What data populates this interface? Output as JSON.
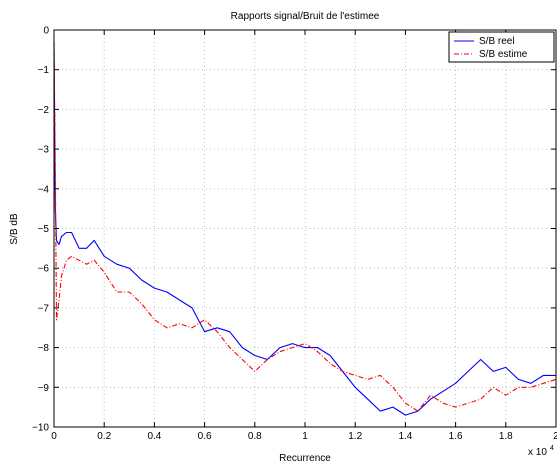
{
  "chart_data": {
    "type": "line",
    "title": "Rapports signal/Bruit de l'estimee",
    "xlabel": "Recurrence",
    "ylabel": "S/B dB",
    "x_multiplier_label": "x 10",
    "x_multiplier_exponent": "4",
    "xlim": [
      0,
      2
    ],
    "ylim": [
      -10,
      0
    ],
    "xticks": [
      "0",
      "0.2",
      "0.4",
      "0.6",
      "0.8",
      "1",
      "1.2",
      "1.4",
      "1.6",
      "1.8",
      "2"
    ],
    "yticks": [
      "0",
      "−1",
      "−2",
      "−3",
      "−4",
      "−5",
      "−6",
      "−7",
      "−8",
      "−9",
      "−10"
    ],
    "grid": true,
    "legend_position": "top-right",
    "series": [
      {
        "name": "S/B reel",
        "color": "#0000ff",
        "style": "solid",
        "x": [
          0.0,
          0.005,
          0.01,
          0.02,
          0.03,
          0.05,
          0.07,
          0.1,
          0.13,
          0.16,
          0.2,
          0.25,
          0.3,
          0.35,
          0.4,
          0.45,
          0.5,
          0.55,
          0.6,
          0.65,
          0.7,
          0.75,
          0.8,
          0.85,
          0.9,
          0.95,
          1.0,
          1.05,
          1.1,
          1.15,
          1.2,
          1.25,
          1.3,
          1.35,
          1.4,
          1.45,
          1.5,
          1.55,
          1.6,
          1.65,
          1.7,
          1.75,
          1.8,
          1.85,
          1.9,
          1.95,
          2.0
        ],
        "y": [
          -0.3,
          -4.5,
          -5.3,
          -5.4,
          -5.2,
          -5.1,
          -5.1,
          -5.5,
          -5.5,
          -5.3,
          -5.7,
          -5.9,
          -6.0,
          -6.3,
          -6.5,
          -6.6,
          -6.8,
          -7.0,
          -7.6,
          -7.5,
          -7.6,
          -8.0,
          -8.2,
          -8.3,
          -8.0,
          -7.9,
          -8.0,
          -8.0,
          -8.2,
          -8.6,
          -9.0,
          -9.3,
          -9.6,
          -9.5,
          -9.7,
          -9.6,
          -9.3,
          -9.1,
          -8.9,
          -8.6,
          -8.3,
          -8.6,
          -8.5,
          -8.8,
          -8.9,
          -8.7,
          -8.7
        ]
      },
      {
        "name": "S/B estime",
        "color": "#ff0000",
        "style": "dash-dot",
        "x": [
          0.0,
          0.005,
          0.01,
          0.02,
          0.03,
          0.05,
          0.07,
          0.1,
          0.13,
          0.16,
          0.2,
          0.25,
          0.3,
          0.35,
          0.4,
          0.45,
          0.5,
          0.55,
          0.6,
          0.65,
          0.7,
          0.75,
          0.8,
          0.85,
          0.9,
          0.95,
          1.0,
          1.05,
          1.1,
          1.15,
          1.2,
          1.25,
          1.3,
          1.35,
          1.4,
          1.45,
          1.5,
          1.55,
          1.6,
          1.65,
          1.7,
          1.75,
          1.8,
          1.85,
          1.9,
          1.95,
          2.0
        ],
        "y": [
          -0.3,
          -3.5,
          -7.3,
          -6.8,
          -6.2,
          -5.8,
          -5.7,
          -5.8,
          -5.9,
          -5.8,
          -6.1,
          -6.6,
          -6.6,
          -6.9,
          -7.3,
          -7.5,
          -7.4,
          -7.5,
          -7.3,
          -7.6,
          -8.0,
          -8.3,
          -8.6,
          -8.3,
          -8.1,
          -8.0,
          -7.9,
          -8.1,
          -8.4,
          -8.6,
          -8.7,
          -8.8,
          -8.7,
          -9.0,
          -9.4,
          -9.6,
          -9.2,
          -9.4,
          -9.5,
          -9.4,
          -9.3,
          -9.0,
          -9.2,
          -9.0,
          -9.0,
          -8.9,
          -8.8
        ]
      }
    ]
  }
}
